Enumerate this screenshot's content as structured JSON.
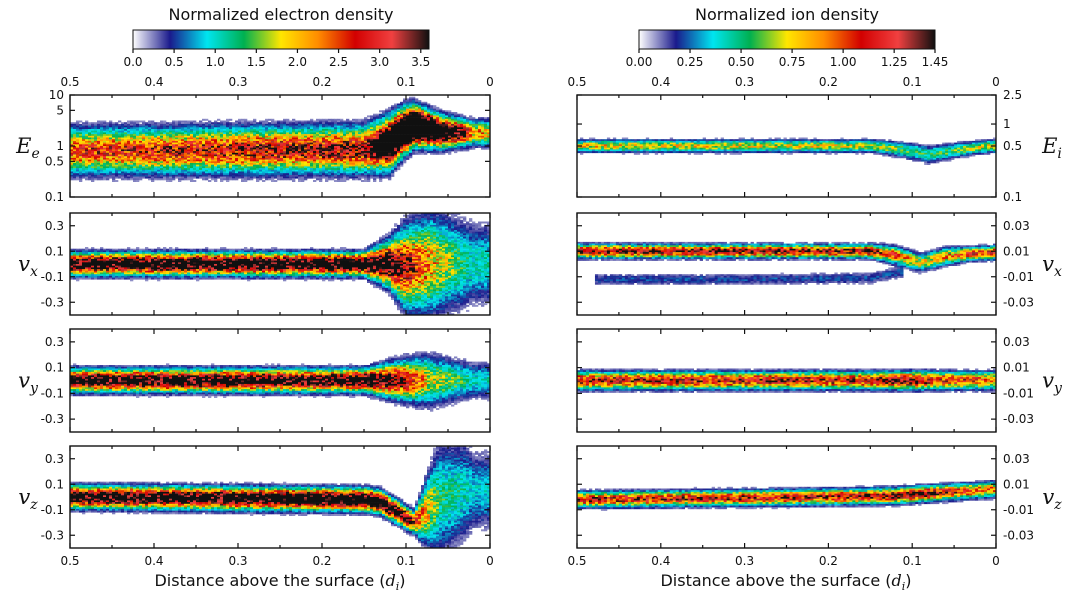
{
  "colormap": [
    "#ffffff",
    "#1a1a8c",
    "#00e5f0",
    "#00b050",
    "#ffe600",
    "#ff8c00",
    "#d20000",
    "#f04040",
    "#101010"
  ],
  "colorbars": {
    "electron": {
      "title": "Normalized electron density",
      "tick_labels": [
        "0.0",
        "0.5",
        "1.0",
        "1.5",
        "2.0",
        "2.5",
        "3.0",
        "3.5"
      ],
      "range": [
        0,
        3.6
      ]
    },
    "ion": {
      "title": "Normalized ion density",
      "tick_labels": [
        "0.00",
        "0.25",
        "0.50",
        "0.75",
        "1.00",
        "1.25",
        "1.45"
      ],
      "range": [
        0,
        1.45
      ]
    }
  },
  "chart_data": [
    {
      "type": "heatmap",
      "species": "electron",
      "x_ticks": [
        "0.5",
        "0.4",
        "0.3",
        "0.2",
        "0.1",
        "0"
      ],
      "xlim": [
        0.5,
        0
      ],
      "xlabel": "Distance above the surface",
      "xlabel_unit": "d",
      "xlabel_unit_sub": "i",
      "rows": [
        {
          "ylabel": "E",
          "ylabel_sub": "e",
          "y_ticks": [
            "10",
            "5",
            "1",
            "0.5",
            "0.1"
          ],
          "ylim": [
            0.1,
            10
          ],
          "log_y": true,
          "band": {
            "x": [
              0.5,
              0.15,
              0.12,
              0.09,
              0.06,
              0.03,
              0.02
            ],
            "y": [
              0.8,
              0.85,
              1.1,
              2.5,
              1.9,
              1.8,
              1.8
            ],
            "width": [
              1.8,
              1.8,
              1.9,
              1.6,
              1.5,
              1.4,
              1.4
            ],
            "peak": [
              0.75,
              0.95,
              1.6,
              2.4,
              1.5,
              1.0,
              0.6
            ]
          }
        },
        {
          "ylabel": "v",
          "ylabel_sub": "x",
          "y_ticks": [
            "0.3",
            "0.1",
            "-0.1",
            "-0.3"
          ],
          "ylim": [
            -0.4,
            0.4
          ],
          "log_y": false,
          "band": {
            "x": [
              0.5,
              0.15,
              0.12,
              0.1,
              0.07,
              0.04,
              0.02
            ],
            "y": [
              0.0,
              0.0,
              0.0,
              -0.03,
              0.0,
              0.0,
              0.0
            ],
            "width": [
              0.05,
              0.05,
              0.1,
              0.18,
              0.22,
              0.2,
              0.18
            ],
            "peak": [
              1.2,
              1.3,
              1.2,
              0.9,
              0.6,
              0.4,
              0.3
            ]
          }
        },
        {
          "ylabel": "v",
          "ylabel_sub": "y",
          "y_ticks": [
            "0.3",
            "0.1",
            "-0.1",
            "-0.3"
          ],
          "ylim": [
            -0.4,
            0.4
          ],
          "log_y": false,
          "band": {
            "x": [
              0.5,
              0.15,
              0.1,
              0.07,
              0.04,
              0.02
            ],
            "y": [
              0.0,
              0.0,
              0.0,
              0.0,
              0.0,
              0.0
            ],
            "width": [
              0.05,
              0.05,
              0.09,
              0.11,
              0.09,
              0.08
            ],
            "peak": [
              1.2,
              1.2,
              0.9,
              0.5,
              0.4,
              0.3
            ]
          }
        },
        {
          "ylabel": "v",
          "ylabel_sub": "z",
          "y_ticks": [
            "0.3",
            "0.1",
            "-0.1",
            "-0.3"
          ],
          "ylim": [
            -0.4,
            0.4
          ],
          "log_y": false,
          "band": {
            "x": [
              0.5,
              0.15,
              0.13,
              0.1,
              0.09,
              0.06,
              0.03,
              0.02
            ],
            "y": [
              0.0,
              -0.02,
              -0.04,
              -0.16,
              -0.2,
              -0.02,
              0.05,
              0.05
            ],
            "width": [
              0.05,
              0.05,
              0.05,
              0.05,
              0.05,
              0.25,
              0.22,
              0.18
            ],
            "peak": [
              1.2,
              1.3,
              1.3,
              1.1,
              0.8,
              0.35,
              0.3,
              0.25
            ]
          }
        }
      ]
    },
    {
      "type": "heatmap",
      "species": "ion",
      "x_ticks": [
        "0.5",
        "0.4",
        "0.3",
        "0.2",
        "0.1",
        "0"
      ],
      "xlim": [
        0.5,
        0
      ],
      "xlabel": "Distance above the surface",
      "xlabel_unit": "d",
      "xlabel_unit_sub": "i",
      "rows": [
        {
          "ylabel": "E",
          "ylabel_sub": "i",
          "y_ticks": [
            "2.5",
            "1",
            "0.5",
            "0.1"
          ],
          "ylim": [
            0.1,
            2.5
          ],
          "log_y": true,
          "band": {
            "x": [
              0.5,
              0.15,
              0.11,
              0.08,
              0.05,
              0.02,
              0.0
            ],
            "y": [
              0.5,
              0.5,
              0.44,
              0.38,
              0.43,
              0.48,
              0.5
            ],
            "width": [
              1.12,
              1.12,
              1.15,
              1.18,
              1.15,
              1.12,
              1.12
            ],
            "peak": [
              0.55,
              0.5,
              0.4,
              0.35,
              0.4,
              0.5,
              0.55
            ]
          }
        },
        {
          "ylabel": "v",
          "ylabel_sub": "x",
          "y_ticks": [
            "0.03",
            "0.01",
            "-0.01",
            "-0.03"
          ],
          "ylim": [
            -0.04,
            0.04
          ],
          "log_y": false,
          "band": {
            "x": [
              0.5,
              0.15,
              0.12,
              0.09,
              0.06,
              0.03,
              0.0
            ],
            "y": [
              0.01,
              0.01,
              0.007,
              0.001,
              0.006,
              0.008,
              0.009
            ],
            "width": [
              0.003,
              0.003,
              0.004,
              0.004,
              0.004,
              0.003,
              0.003
            ],
            "peak": [
              0.95,
              0.9,
              0.7,
              0.5,
              0.6,
              0.75,
              0.8
            ]
          },
          "faint_branch": {
            "x": [
              0.48,
              0.3,
              0.15,
              0.11
            ],
            "y": [
              -0.012,
              -0.012,
              -0.011,
              -0.006
            ],
            "width": 0.003,
            "peak": 0.15
          }
        },
        {
          "ylabel": "v",
          "ylabel_sub": "y",
          "y_ticks": [
            "0.03",
            "0.01",
            "-0.01",
            "-0.03"
          ],
          "ylim": [
            -0.04,
            0.04
          ],
          "log_y": false,
          "band": {
            "x": [
              0.5,
              0.15,
              0.1,
              0.07,
              0.0
            ],
            "y": [
              0.0,
              0.0,
              0.0,
              0.0,
              0.0
            ],
            "width": [
              0.004,
              0.004,
              0.004,
              0.004,
              0.004
            ],
            "peak": [
              0.85,
              0.85,
              1.05,
              0.8,
              0.7
            ]
          }
        },
        {
          "ylabel": "v",
          "ylabel_sub": "z",
          "y_ticks": [
            "0.03",
            "0.01",
            "-0.01",
            "-0.03"
          ],
          "ylim": [
            -0.04,
            0.04
          ],
          "log_y": false,
          "band": {
            "x": [
              0.5,
              0.2,
              0.12,
              0.1,
              0.05,
              0.0
            ],
            "y": [
              -0.002,
              0.0,
              0.001,
              0.002,
              0.004,
              0.006
            ],
            "width": [
              0.0035,
              0.0035,
              0.0035,
              0.0035,
              0.0035,
              0.0035
            ],
            "peak": [
              0.85,
              0.85,
              0.95,
              1.05,
              0.8,
              0.65
            ]
          }
        }
      ]
    }
  ]
}
